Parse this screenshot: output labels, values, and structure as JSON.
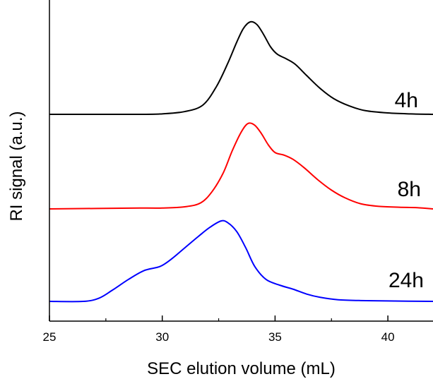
{
  "chart_data": {
    "type": "line",
    "title": "",
    "xlabel": "SEC elution volume (mL)",
    "ylabel": "RI signal (a.u.)",
    "xlim": [
      25,
      42
    ],
    "x_ticks": [
      25,
      30,
      35,
      40
    ],
    "x_tick_labels": [
      "25",
      "30",
      "35",
      "40"
    ],
    "y_ticks_visible": false,
    "grid": false,
    "legend": "none",
    "series": [
      {
        "name": "4h",
        "color": "#000000",
        "baseline": 0.0,
        "points": [
          [
            25,
            0
          ],
          [
            29,
            0
          ],
          [
            30,
            0.005
          ],
          [
            31,
            0.03
          ],
          [
            31.8,
            0.1
          ],
          [
            32.4,
            0.3
          ],
          [
            32.9,
            0.55
          ],
          [
            33.3,
            0.78
          ],
          [
            33.6,
            0.93
          ],
          [
            33.9,
            1.0
          ],
          [
            34.2,
            0.97
          ],
          [
            34.5,
            0.86
          ],
          [
            34.8,
            0.73
          ],
          [
            35.1,
            0.65
          ],
          [
            35.5,
            0.6
          ],
          [
            35.9,
            0.54
          ],
          [
            36.4,
            0.42
          ],
          [
            37.0,
            0.28
          ],
          [
            37.6,
            0.17
          ],
          [
            38.3,
            0.09
          ],
          [
            39.0,
            0.04
          ],
          [
            40.0,
            0.015
          ],
          [
            41.0,
            0.005
          ],
          [
            42,
            0
          ]
        ]
      },
      {
        "name": "8h",
        "color": "#ff0000",
        "baseline": 0.0,
        "points": [
          [
            25,
            0
          ],
          [
            29,
            0.01
          ],
          [
            30,
            0.01
          ],
          [
            31,
            0.025
          ],
          [
            31.7,
            0.07
          ],
          [
            32.2,
            0.2
          ],
          [
            32.7,
            0.42
          ],
          [
            33.1,
            0.68
          ],
          [
            33.5,
            0.9
          ],
          [
            33.8,
            1.0
          ],
          [
            34.1,
            0.98
          ],
          [
            34.4,
            0.88
          ],
          [
            34.7,
            0.75
          ],
          [
            35.0,
            0.66
          ],
          [
            35.4,
            0.63
          ],
          [
            35.8,
            0.58
          ],
          [
            36.3,
            0.48
          ],
          [
            36.9,
            0.34
          ],
          [
            37.5,
            0.22
          ],
          [
            38.1,
            0.13
          ],
          [
            38.8,
            0.06
          ],
          [
            39.6,
            0.03
          ],
          [
            40.5,
            0.02
          ],
          [
            41.3,
            0.015
          ],
          [
            42,
            0
          ]
        ]
      },
      {
        "name": "24h",
        "color": "#0000ff",
        "baseline": 0.0,
        "points": [
          [
            25,
            0
          ],
          [
            26.5,
            0
          ],
          [
            27.2,
            0.04
          ],
          [
            27.8,
            0.14
          ],
          [
            28.5,
            0.27
          ],
          [
            29.2,
            0.38
          ],
          [
            29.9,
            0.43
          ],
          [
            30.4,
            0.52
          ],
          [
            31.0,
            0.66
          ],
          [
            31.6,
            0.8
          ],
          [
            32.1,
            0.91
          ],
          [
            32.6,
            0.99
          ],
          [
            32.9,
            0.97
          ],
          [
            33.3,
            0.86
          ],
          [
            33.7,
            0.66
          ],
          [
            34.1,
            0.43
          ],
          [
            34.6,
            0.27
          ],
          [
            35.2,
            0.2
          ],
          [
            35.8,
            0.15
          ],
          [
            36.4,
            0.09
          ],
          [
            37.0,
            0.05
          ],
          [
            37.8,
            0.02
          ],
          [
            38.8,
            0.01
          ],
          [
            40,
            0.005
          ],
          [
            42,
            0
          ]
        ]
      }
    ]
  }
}
